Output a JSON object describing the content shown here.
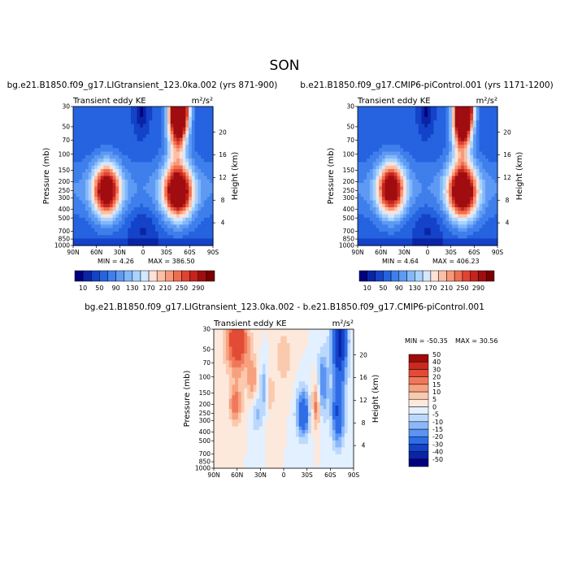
{
  "page": {
    "title": "SON"
  },
  "colors": {
    "absolute_scale": [
      "#000080",
      "#0a24a6",
      "#1442c8",
      "#2563e0",
      "#3f7fec",
      "#5e9af4",
      "#82b7fa",
      "#a9d2fd",
      "#d2e8ff",
      "#ffe1d5",
      "#fcbfa6",
      "#f79878",
      "#ee6e4e",
      "#e04332",
      "#c4231e",
      "#a00d10",
      "#7a0000"
    ],
    "difference_scale": [
      "#000080",
      "#0a24a6",
      "#1442c8",
      "#2e6de6",
      "#5b94f2",
      "#8bb8f9",
      "#bcd9fd",
      "#e2f0ff",
      "#fde8dc",
      "#fbc9ad",
      "#f7a17f",
      "#f0785a",
      "#e24b35",
      "#c82a20",
      "#9e0b0b"
    ]
  },
  "chart_data": [
    {
      "type": "heatmap",
      "name": "panel-left",
      "title": "bg.e21.B1850.f09_g17.LIGtransient_123.0ka.002 (yrs 871-900)",
      "left_label": "Transient eddy KE",
      "units": "m²/s²",
      "ylabel": "Pressure (mb)",
      "ylabel_right": "Height (km)",
      "x_ticks": [
        "90N",
        "60N",
        "30N",
        "0",
        "30S",
        "60S",
        "90S"
      ],
      "y_ticks": [
        "30",
        "50",
        "70",
        "100",
        "150",
        "200",
        "250",
        "300",
        "400",
        "500",
        "700",
        "850",
        "1000"
      ],
      "y_ticks_right": [
        "4",
        "8",
        "12",
        "16",
        "20"
      ],
      "x_range": [
        90,
        -90
      ],
      "y_range_mb": [
        1000,
        30
      ],
      "min_label": "MIN =   4.26",
      "max_label": "MAX = 386.50",
      "min": 4.26,
      "max": 386.5,
      "colorbar_labels": [
        "10",
        "50",
        "90",
        "130",
        "170",
        "210",
        "250",
        "290"
      ],
      "colorbar_levels": [
        10,
        30,
        50,
        70,
        90,
        110,
        130,
        150,
        170,
        190,
        210,
        230,
        250,
        270,
        290
      ],
      "features": [
        {
          "lat": -47,
          "p": 30,
          "amp": 380,
          "wlat": 8,
          "wz": 3.5
        },
        {
          "lat": -43,
          "p": 55,
          "amp": 140,
          "wlat": 9,
          "wz": 4.5
        },
        {
          "lat": -45,
          "p": 260,
          "amp": 300,
          "wlat": 13,
          "wz": 3.2
        },
        {
          "lat": 47,
          "p": 250,
          "amp": 280,
          "wlat": 12,
          "wz": 3.2
        },
        {
          "lat": 2,
          "p": 30,
          "amp": -55,
          "wlat": 6,
          "wz": 3.0
        }
      ]
    },
    {
      "type": "heatmap",
      "name": "panel-right",
      "title": "b.e21.B1850.f09_g17.CMIP6-piControl.001 (yrs 1171-1200)",
      "left_label": "Transient eddy KE",
      "units": "m²/s²",
      "ylabel": "Pressure (mb)",
      "ylabel_right": "Height (km)",
      "x_ticks": [
        "90N",
        "60N",
        "30N",
        "0",
        "30S",
        "60S",
        "90S"
      ],
      "y_ticks": [
        "30",
        "50",
        "70",
        "100",
        "150",
        "200",
        "250",
        "300",
        "400",
        "500",
        "700",
        "850",
        "1000"
      ],
      "y_ticks_right": [
        "4",
        "8",
        "12",
        "16",
        "20"
      ],
      "x_range": [
        90,
        -90
      ],
      "y_range_mb": [
        1000,
        30
      ],
      "min_label": "MIN =   4.64",
      "max_label": "MAX = 406.23",
      "min": 4.64,
      "max": 406.23,
      "colorbar_labels": [
        "10",
        "50",
        "90",
        "130",
        "170",
        "210",
        "250",
        "290"
      ],
      "colorbar_levels": [
        10,
        30,
        50,
        70,
        90,
        110,
        130,
        150,
        170,
        190,
        210,
        230,
        250,
        270,
        290
      ],
      "features": [
        {
          "lat": -47,
          "p": 30,
          "amp": 400,
          "wlat": 8,
          "wz": 3.5
        },
        {
          "lat": -43,
          "p": 55,
          "amp": 150,
          "wlat": 9,
          "wz": 4.5
        },
        {
          "lat": -45,
          "p": 260,
          "amp": 310,
          "wlat": 13,
          "wz": 3.2
        },
        {
          "lat": 47,
          "p": 240,
          "amp": 270,
          "wlat": 12,
          "wz": 3.2
        },
        {
          "lat": 2,
          "p": 30,
          "amp": -55,
          "wlat": 6,
          "wz": 3.0
        }
      ]
    },
    {
      "type": "heatmap",
      "name": "panel-diff",
      "title": "bg.e21.B1850.f09_g17.LIGtransient_123.0ka.002 - b.e21.B1850.f09_g17.CMIP6-piControl.001",
      "left_label": "Transient eddy KE",
      "units": "m²/s²",
      "ylabel": "Pressure (mb)",
      "ylabel_right": "Height (km)",
      "x_ticks": [
        "90N",
        "60N",
        "30N",
        "0",
        "30S",
        "60S",
        "90S"
      ],
      "y_ticks": [
        "30",
        "50",
        "70",
        "100",
        "150",
        "200",
        "250",
        "300",
        "400",
        "500",
        "700",
        "850",
        "1000"
      ],
      "y_ticks_right": [
        "4",
        "8",
        "12",
        "16",
        "20"
      ],
      "x_range": [
        90,
        -90
      ],
      "y_range_mb": [
        1000,
        30
      ],
      "min_label": "MIN = -50.35",
      "max_label": "MAX =  30.56",
      "min": -50.35,
      "max": 30.56,
      "colorbar_labels": [
        "-50",
        "-40",
        "-30",
        "-20",
        "-15",
        "-10",
        "-5",
        "0",
        "5",
        "10",
        "15",
        "20",
        "30",
        "40",
        "50"
      ],
      "colorbar_levels": [
        -50,
        -40,
        -30,
        -20,
        -15,
        -10,
        -5,
        0,
        5,
        10,
        15,
        20,
        30,
        40,
        50
      ],
      "features": [
        {
          "lat": 60,
          "p": 40,
          "amp": 30,
          "wlat": 10,
          "wz": 4
        },
        {
          "lat": 62,
          "p": 200,
          "amp": 18,
          "wlat": 6,
          "wz": 2.5
        },
        {
          "lat": 40,
          "p": 110,
          "amp": 14,
          "wlat": 5,
          "wz": 3
        },
        {
          "lat": 35,
          "p": 250,
          "amp": -12,
          "wlat": 5,
          "wz": 2.5
        },
        {
          "lat": 25,
          "p": 130,
          "amp": -15,
          "wlat": 4,
          "wz": 3
        },
        {
          "lat": 18,
          "p": 150,
          "amp": 10,
          "wlat": 4,
          "wz": 3
        },
        {
          "lat": -25,
          "p": 250,
          "amp": -30,
          "wlat": 6,
          "wz": 3
        },
        {
          "lat": -50,
          "p": 120,
          "amp": -22,
          "wlat": 5,
          "wz": 4
        },
        {
          "lat": -42,
          "p": 200,
          "amp": 20,
          "wlat": 4,
          "wz": 3
        },
        {
          "lat": -72,
          "p": 40,
          "amp": -45,
          "wlat": 7,
          "wz": 5
        },
        {
          "lat": -70,
          "p": 250,
          "amp": -30,
          "wlat": 6,
          "wz": 4
        },
        {
          "lat": 0,
          "p": 60,
          "amp": 8,
          "wlat": 8,
          "wz": 4
        }
      ]
    }
  ]
}
